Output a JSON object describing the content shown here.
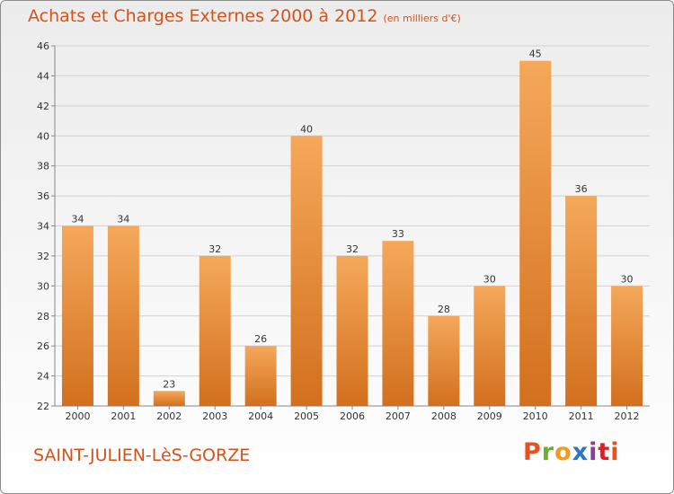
{
  "header": {
    "title": "Achats et Charges Externes 2000 à 2012",
    "unit": "(en milliers d'€)"
  },
  "footer": {
    "city": "SAINT-JULIEN-LèS-GORZE",
    "logo": "Proxiti"
  },
  "colors": {
    "title": "#d4531a",
    "bar_top": "#f5a85a",
    "bar_bottom": "#d2701e",
    "logo_letters": [
      "#e8501f",
      "#6bb22c",
      "#f39a1e",
      "#2d77c2",
      "#8a3f96",
      "#d3222a",
      "#e8501f"
    ]
  },
  "chart_data": {
    "type": "bar",
    "title": "Achats et Charges Externes 2000 à 2012",
    "subtitle": "(en milliers d'€)",
    "categories": [
      "2000",
      "2001",
      "2002",
      "2003",
      "2004",
      "2005",
      "2006",
      "2007",
      "2008",
      "2009",
      "2010",
      "2011",
      "2012"
    ],
    "values": [
      34,
      34,
      23,
      32,
      26,
      40,
      32,
      33,
      28,
      30,
      45,
      36,
      30
    ],
    "ylim": [
      22,
      46
    ],
    "yticks": [
      22,
      24,
      26,
      28,
      30,
      32,
      34,
      36,
      38,
      40,
      42,
      44,
      46
    ],
    "grid": true,
    "legend": "none"
  }
}
